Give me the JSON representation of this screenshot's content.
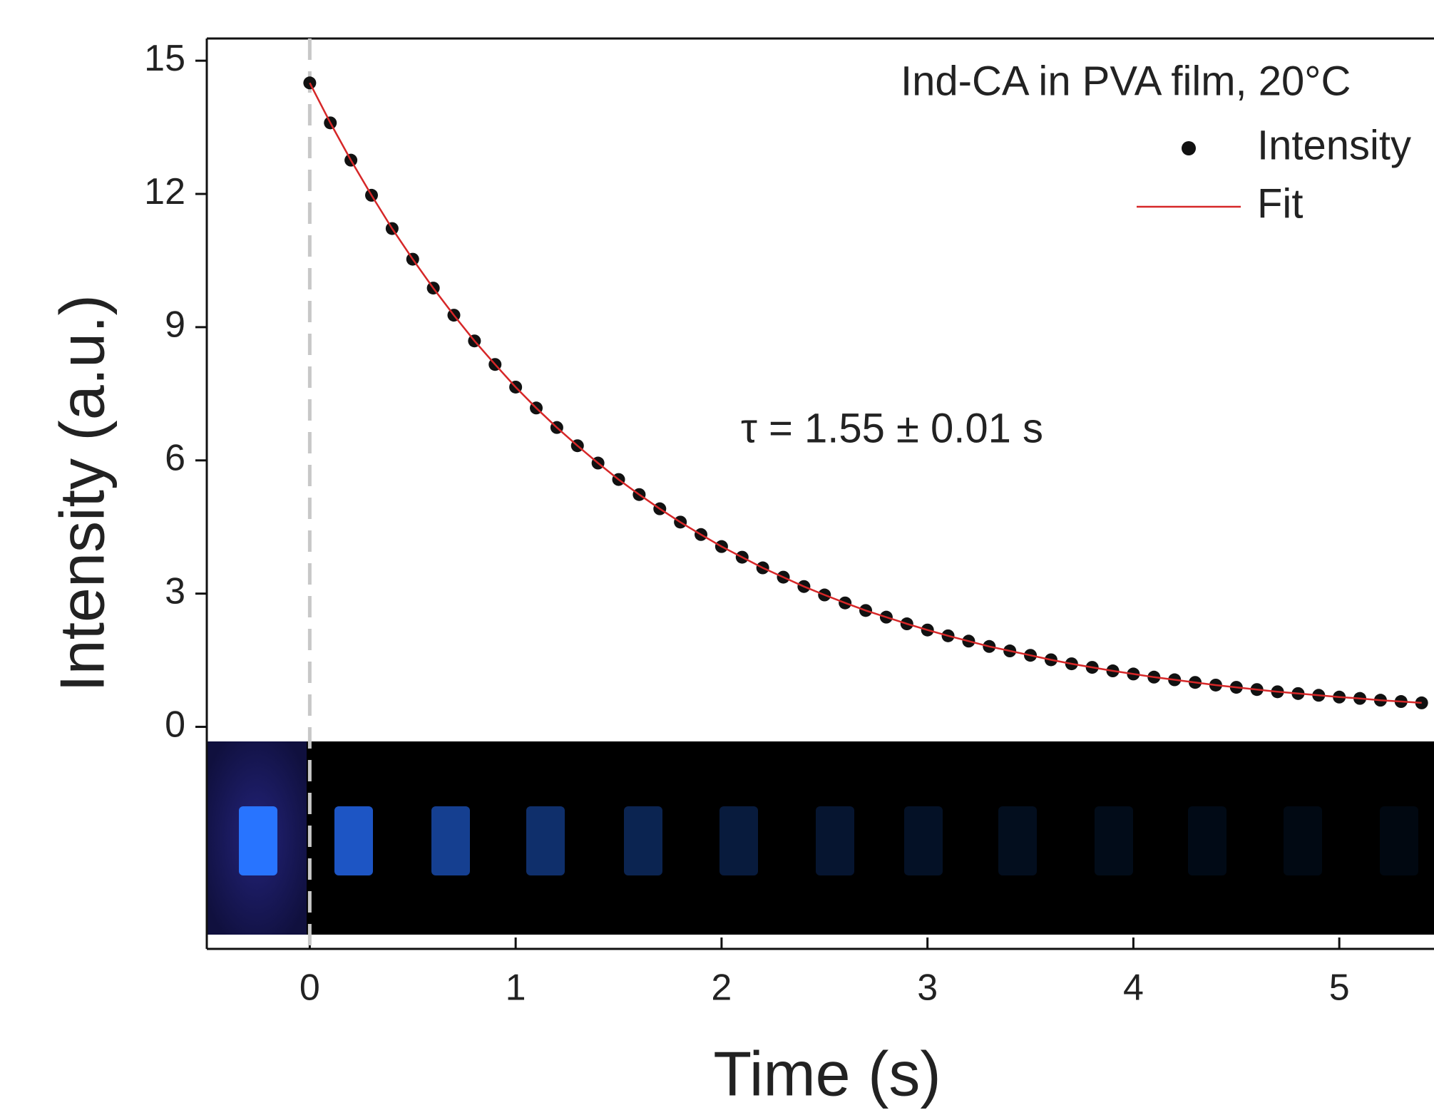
{
  "chart_data": {
    "type": "scatter",
    "x_label": "Time (s)",
    "y_label": "Intensity (a.u.)",
    "legend_title": "Ind-CA in PVA film, 20°C",
    "annotation": "τ = 1.55 ± 0.01 s",
    "reference_line_x": 0,
    "xlim": [
      -0.5,
      5.46
    ],
    "xticks": [
      0,
      1,
      2,
      3,
      4,
      5
    ],
    "ylim": [
      -5,
      15.5
    ],
    "yticks": [
      0,
      3,
      6,
      9,
      12,
      15
    ],
    "x": [
      0,
      0.1,
      0.2,
      0.3,
      0.4,
      0.5,
      0.6,
      0.7,
      0.8,
      0.9,
      1,
      1.1,
      1.2,
      1.3,
      1.4,
      1.5,
      1.6,
      1.7,
      1.8,
      1.9,
      2,
      2.1,
      2.2,
      2.3,
      2.4,
      2.5,
      2.6,
      2.7,
      2.8,
      2.9,
      3,
      3.1,
      3.2,
      3.3,
      3.4,
      3.5,
      3.6,
      3.7,
      3.8,
      3.9,
      4,
      4.1,
      4.2,
      4.3,
      4.4,
      4.5,
      4.6,
      4.7,
      4.8,
      4.9,
      5,
      5.1,
      5.2,
      5.3,
      5.4
    ],
    "series": [
      {
        "name": "Intensity",
        "style": "markers",
        "color": "#111111",
        "values": [
          14.5,
          13.6,
          12.76,
          11.97,
          11.22,
          10.53,
          9.88,
          9.27,
          8.69,
          8.16,
          7.65,
          7.18,
          6.74,
          6.33,
          5.94,
          5.57,
          5.23,
          4.91,
          4.61,
          4.33,
          4.06,
          3.82,
          3.58,
          3.37,
          3.16,
          2.97,
          2.79,
          2.62,
          2.47,
          2.32,
          2.18,
          2.05,
          1.93,
          1.81,
          1.71,
          1.61,
          1.51,
          1.42,
          1.34,
          1.26,
          1.19,
          1.12,
          1.06,
          1.0,
          0.94,
          0.89,
          0.84,
          0.79,
          0.75,
          0.71,
          0.67,
          0.64,
          0.6,
          0.57,
          0.54
        ]
      },
      {
        "name": "Fit",
        "style": "line",
        "color": "#d62728",
        "values": [
          14.5,
          13.6,
          12.76,
          11.97,
          11.22,
          10.53,
          9.88,
          9.27,
          8.69,
          8.16,
          7.65,
          7.18,
          6.74,
          6.33,
          5.94,
          5.57,
          5.23,
          4.91,
          4.61,
          4.33,
          4.06,
          3.82,
          3.58,
          3.37,
          3.16,
          2.97,
          2.79,
          2.62,
          2.47,
          2.32,
          2.18,
          2.05,
          1.93,
          1.81,
          1.71,
          1.61,
          1.51,
          1.42,
          1.34,
          1.26,
          1.19,
          1.12,
          1.06,
          1.0,
          0.94,
          0.89,
          0.84,
          0.79,
          0.75,
          0.71,
          0.67,
          0.64,
          0.6,
          0.57,
          0.54
        ]
      }
    ]
  }
}
